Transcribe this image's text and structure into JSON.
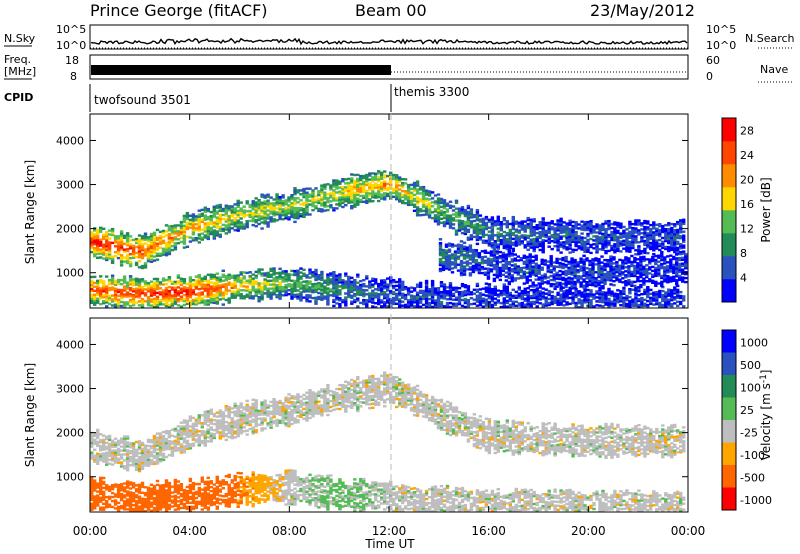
{
  "header": {
    "station": "Prince George (fitACF)",
    "beam": "Beam 00",
    "date": "23/May/2012"
  },
  "top_panels": {
    "nsky_label": "N.Sky",
    "nsky_ticks": [
      "10^5",
      "10^0"
    ],
    "nsearch_label": "N.Search",
    "nsearch_ticks": [
      "10^5",
      "10^0"
    ],
    "freq_label_1": "Freq.",
    "freq_label_2": "[MHz]",
    "freq_ticks": [
      "18",
      "8"
    ],
    "nave_label": "Nave",
    "nave_ticks": [
      "60",
      "0"
    ],
    "cpid_label": "CPID",
    "cpid_segments": [
      {
        "name": "twofsound 3501",
        "start_hour": 0
      },
      {
        "name": "themis 3300",
        "start_hour": 12
      }
    ]
  },
  "chart_data": [
    {
      "type": "heatmap",
      "title": "",
      "ylabel": "Slant Range [km]",
      "xlabel": "",
      "y_ticks": [
        "1000",
        "2000",
        "3000",
        "4000"
      ],
      "ylim": [
        200,
        4600
      ],
      "xlim": [
        0,
        24
      ],
      "colorbar_label": "Power [dB]",
      "colorbar_ticks": [
        "4",
        "8",
        "12",
        "16",
        "20",
        "24",
        "28"
      ],
      "colorbar_range": [
        0,
        30
      ],
      "colors": [
        "#0000ff",
        "#2a52be",
        "#228b57",
        "#55bb55",
        "#ffd700",
        "#ff8c00",
        "#ff4500",
        "#ff0000"
      ],
      "echo_bands": [
        {
          "ranges_km": [
            [
              0,
              1700
            ],
            [
              2,
              1450
            ],
            [
              4,
              2000
            ],
            [
              6,
              2300
            ],
            [
              8,
              2500
            ],
            [
              10,
              2800
            ],
            [
              12,
              3000
            ],
            [
              14,
              2400
            ],
            [
              16,
              1900
            ],
            [
              18,
              1850
            ],
            [
              20,
              1800
            ],
            [
              22,
              1800
            ],
            [
              24,
              1800
            ]
          ],
          "power_db": [
            26,
            22,
            18,
            15,
            14,
            16,
            20,
            12,
            8,
            6,
            6,
            5,
            5
          ]
        },
        {
          "ranges_km": [
            [
              0,
              600
            ],
            [
              2,
              500
            ],
            [
              4,
              550
            ],
            [
              6,
              700
            ],
            [
              8,
              750
            ],
            [
              10,
              600
            ],
            [
              12,
              500
            ],
            [
              14,
              400
            ],
            [
              16,
              350
            ],
            [
              18,
              320
            ],
            [
              20,
              300
            ],
            [
              22,
              300
            ],
            [
              24,
              300
            ]
          ],
          "power_db": [
            22,
            24,
            26,
            18,
            12,
            8,
            6,
            5,
            4,
            4,
            4,
            4,
            4
          ]
        },
        {
          "ranges_km": [
            [
              14,
              1400
            ],
            [
              16,
              1200
            ],
            [
              18,
              1000
            ],
            [
              20,
              1000
            ],
            [
              22,
              1050
            ],
            [
              24,
              1100
            ]
          ],
          "power_db": [
            8,
            6,
            5,
            5,
            4,
            4
          ]
        }
      ]
    },
    {
      "type": "heatmap",
      "title": "",
      "ylabel": "Slant Range [km]",
      "xlabel": "Time UT",
      "x_ticks": [
        "00:00",
        "04:00",
        "08:00",
        "12:00",
        "16:00",
        "20:00",
        "00:00"
      ],
      "y_ticks": [
        "1000",
        "2000",
        "3000",
        "4000"
      ],
      "ylim": [
        200,
        4600
      ],
      "xlim": [
        0,
        24
      ],
      "colorbar_label": "Velocity [m s^-1]",
      "colorbar_ticks": [
        "1000",
        "500",
        "100",
        "25",
        "-25",
        "-100",
        "-500",
        "-1000"
      ],
      "colors": [
        "#0000ff",
        "#2a52be",
        "#228b57",
        "#55bb55",
        "#bebebe",
        "#ffa500",
        "#ff6600",
        "#ff0000"
      ],
      "echo_bands": [
        {
          "ranges_km": [
            [
              0,
              1700
            ],
            [
              2,
              1450
            ],
            [
              4,
              2000
            ],
            [
              6,
              2300
            ],
            [
              8,
              2500
            ],
            [
              10,
              2800
            ],
            [
              12,
              3000
            ],
            [
              14,
              2400
            ],
            [
              16,
              1900
            ],
            [
              18,
              1850
            ],
            [
              20,
              1800
            ],
            [
              22,
              1800
            ],
            [
              24,
              1800
            ]
          ],
          "velocity": [
            0,
            0,
            0,
            0,
            0,
            0,
            0,
            0,
            0,
            0,
            0,
            0,
            0
          ]
        },
        {
          "ranges_km": [
            [
              0,
              600
            ],
            [
              2,
              500
            ],
            [
              4,
              550
            ],
            [
              6,
              700
            ],
            [
              8,
              750
            ],
            [
              10,
              600
            ],
            [
              12,
              500
            ],
            [
              14,
              400
            ],
            [
              16,
              350
            ],
            [
              18,
              320
            ],
            [
              20,
              300
            ],
            [
              22,
              300
            ],
            [
              24,
              300
            ]
          ],
          "velocity": [
            -300,
            -400,
            -300,
            -100,
            0,
            50,
            0,
            0,
            0,
            0,
            0,
            0,
            0
          ]
        }
      ]
    }
  ]
}
